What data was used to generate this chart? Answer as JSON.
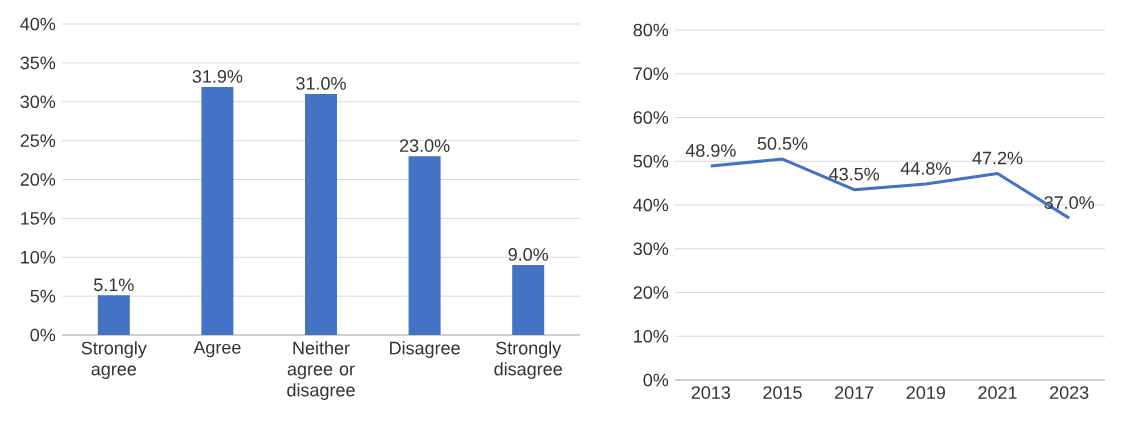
{
  "chart_data": [
    {
      "type": "bar",
      "categories": [
        "Strongly agree",
        "Agree",
        "Neither agree or disagree",
        "Disagree",
        "Strongly disagree"
      ],
      "values": [
        5.1,
        31.9,
        31.0,
        23.0,
        9.0
      ],
      "value_labels": [
        "5.1%",
        "31.9%",
        "31.0%",
        "23.0%",
        "9.0%"
      ],
      "color": "#4472c4",
      "ylim": [
        0,
        40
      ],
      "yticks": [
        {
          "value": 0,
          "label": "0%"
        },
        {
          "value": 5,
          "label": "5%"
        },
        {
          "value": 10,
          "label": "10%"
        },
        {
          "value": 15,
          "label": "15%"
        },
        {
          "value": 20,
          "label": "20%"
        },
        {
          "value": 25,
          "label": "25%"
        },
        {
          "value": 30,
          "label": "30%"
        },
        {
          "value": 35,
          "label": "35%"
        },
        {
          "value": 40,
          "label": "40%"
        }
      ],
      "grid": "y"
    },
    {
      "type": "line",
      "categories": [
        "2013",
        "2015",
        "2017",
        "2019",
        "2021",
        "2023"
      ],
      "values": [
        48.9,
        50.5,
        43.5,
        44.8,
        47.2,
        37.0
      ],
      "value_labels": [
        "48.9%",
        "50.5%",
        "43.5%",
        "44.8%",
        "47.2%",
        "37.0%"
      ],
      "color": "#4472c4",
      "marker": "none",
      "ylim": [
        0,
        80
      ],
      "yticks": [
        {
          "value": 0,
          "label": "0%"
        },
        {
          "value": 10,
          "label": "10%"
        },
        {
          "value": 20,
          "label": "20%"
        },
        {
          "value": 30,
          "label": "30%"
        },
        {
          "value": 40,
          "label": "40%"
        },
        {
          "value": 50,
          "label": "50%"
        },
        {
          "value": 60,
          "label": "60%"
        },
        {
          "value": 70,
          "label": "70%"
        },
        {
          "value": 80,
          "label": "80%"
        }
      ],
      "grid": "y"
    }
  ]
}
